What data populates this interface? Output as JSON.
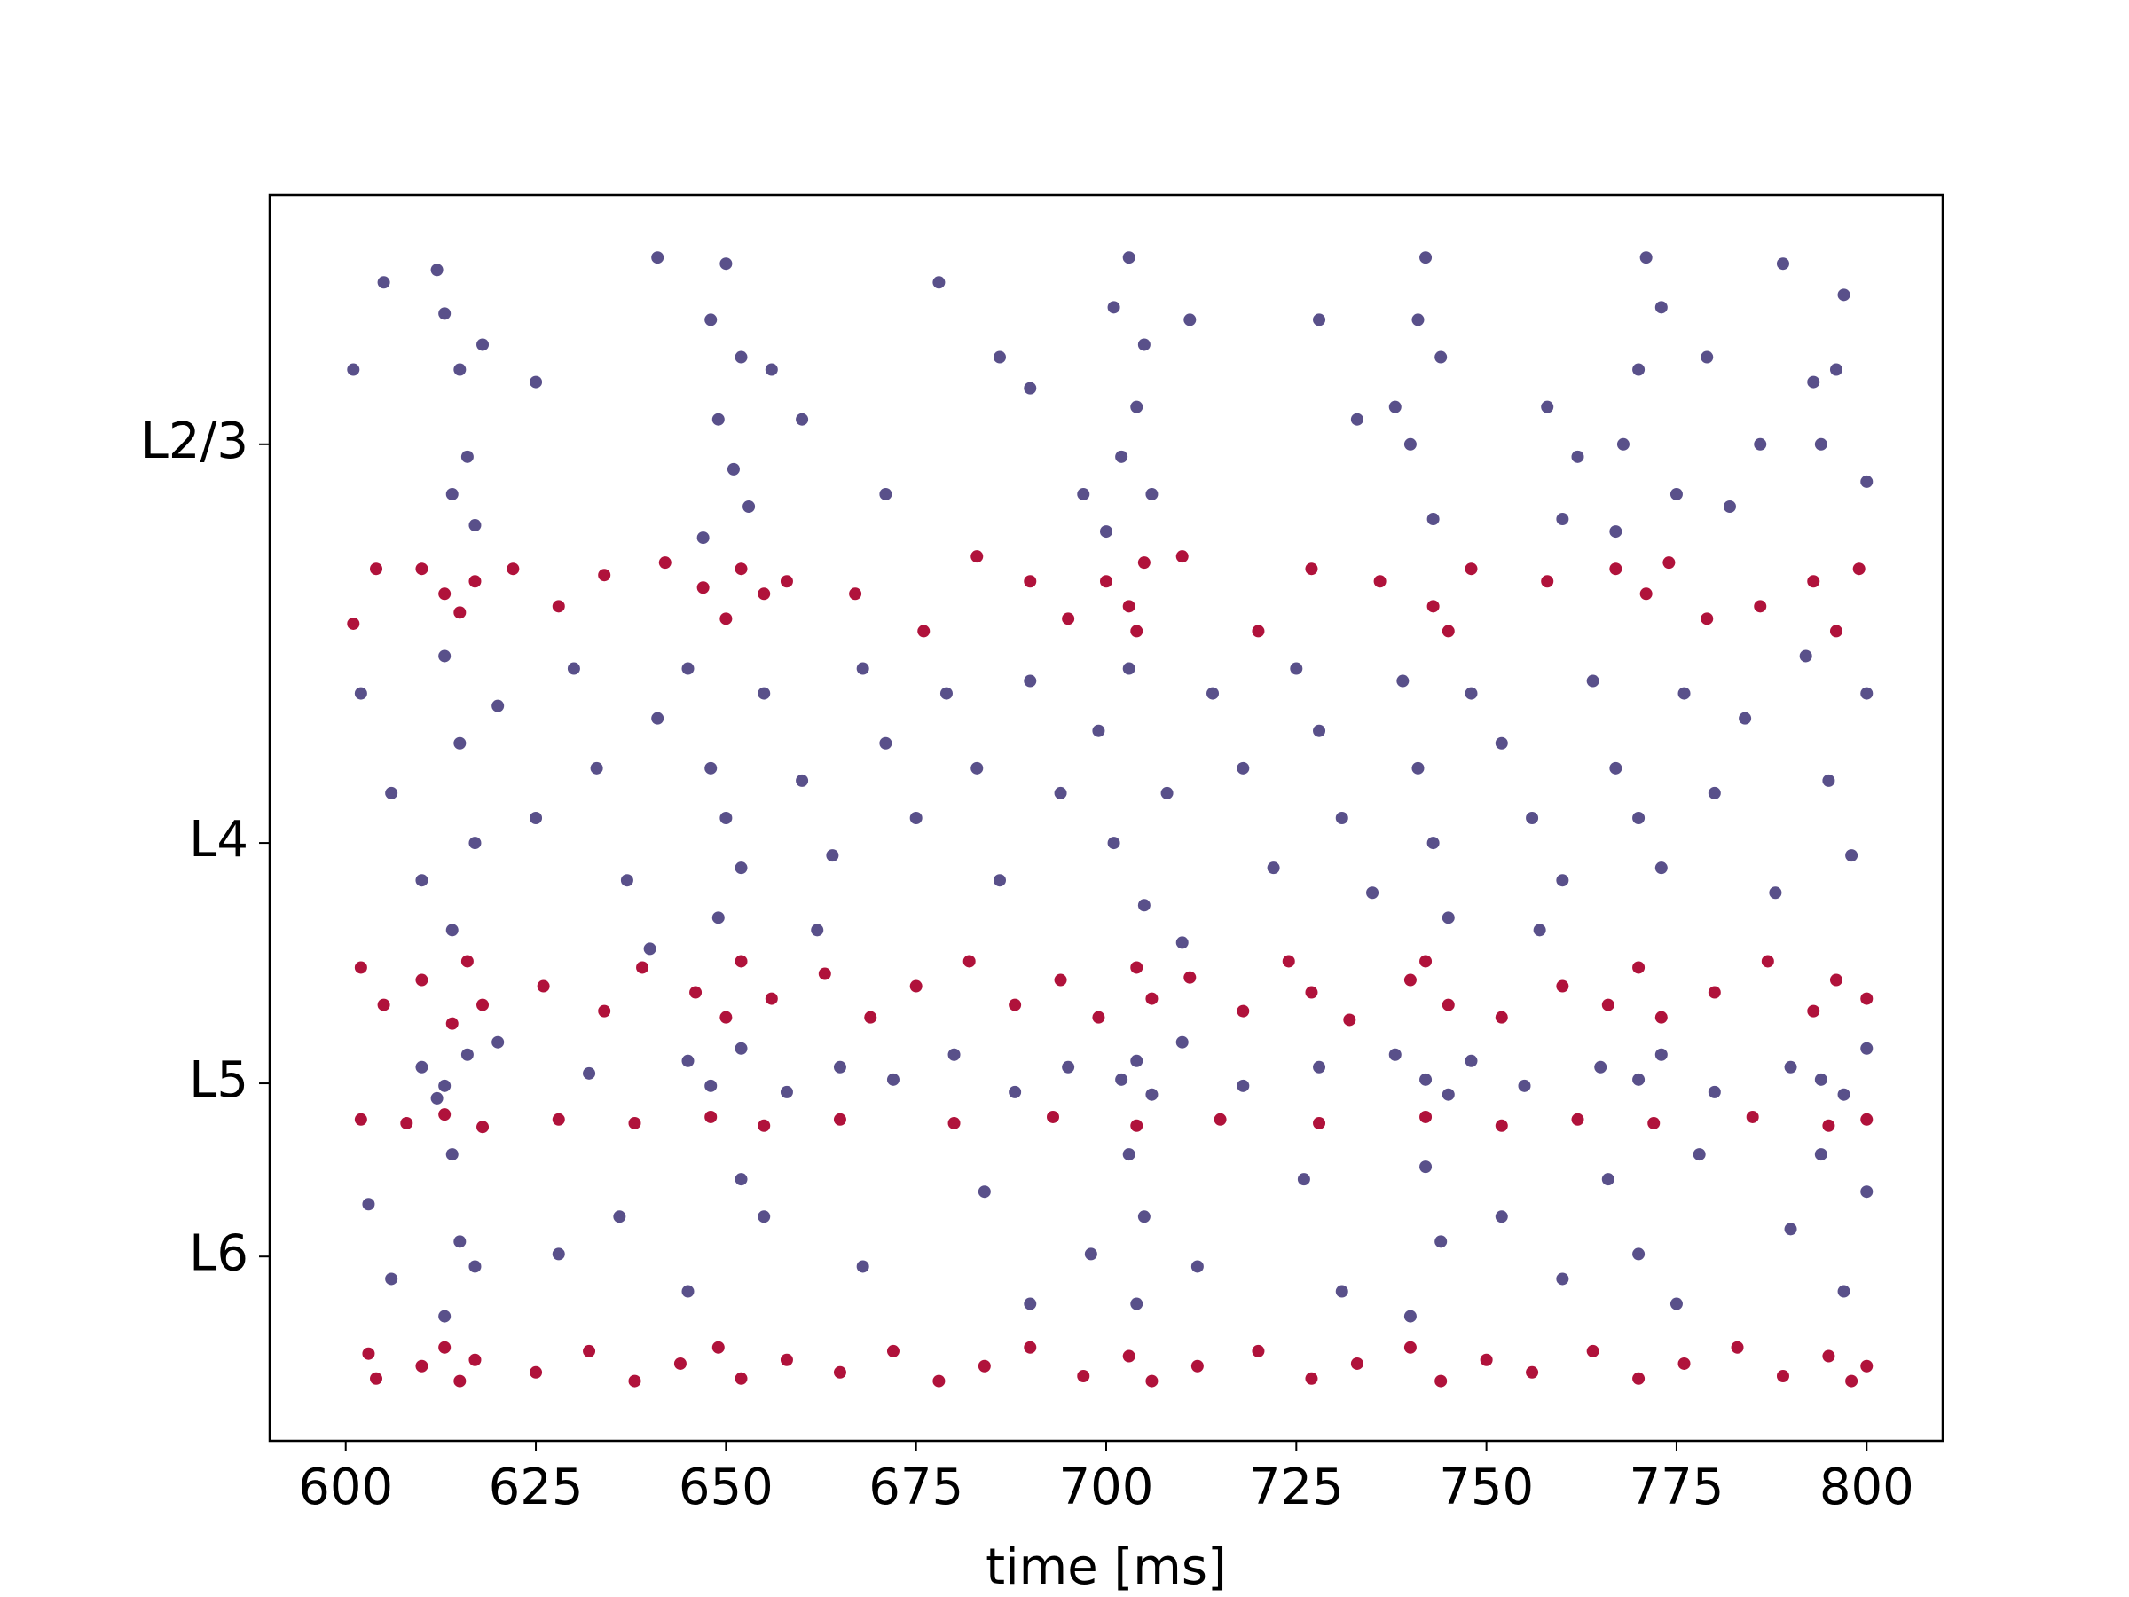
{
  "chart_data": {
    "type": "scatter",
    "xlabel": "time [ms]",
    "xlim": [
      590,
      810
    ],
    "xticks": [
      600,
      625,
      650,
      675,
      700,
      725,
      750,
      775,
      800
    ],
    "ylim": [
      0,
      1000
    ],
    "yticks": [
      {
        "value": 800,
        "label": "L2/3"
      },
      {
        "value": 480,
        "label": "L4"
      },
      {
        "value": 287,
        "label": "L5"
      },
      {
        "value": 148,
        "label": "L6"
      }
    ],
    "series": [
      {
        "color": "#59508a",
        "x": [
          605,
          613,
          615,
          616,
          614,
          617,
          612,
          618,
          601,
          625,
          650,
          648,
          652,
          649,
          651,
          653,
          647,
          641,
          656,
          660,
          671,
          678,
          686,
          690,
          697,
          703,
          701,
          705,
          704,
          702,
          706,
          700,
          711,
          728,
          733,
          742,
          741,
          744,
          740,
          743,
          738,
          758,
          762,
          760,
          771,
          773,
          770,
          768,
          775,
          767,
          779,
          793,
          789,
          797,
          796,
          794,
          800,
          786,
          782,
          602,
          606,
          610,
          613,
          615,
          617,
          614,
          620,
          625,
          630,
          633,
          637,
          641,
          645,
          648,
          650,
          652,
          649,
          655,
          660,
          664,
          668,
          671,
          675,
          679,
          683,
          686,
          690,
          694,
          699,
          701,
          703,
          705,
          708,
          714,
          718,
          722,
          725,
          728,
          731,
          735,
          739,
          741,
          743,
          745,
          748,
          752,
          756,
          760,
          764,
          767,
          770,
          773,
          776,
          780,
          784,
          788,
          792,
          795,
          798,
          800,
          662,
          710,
          757,
          640,
          610,
          613,
          616,
          612,
          620,
          632,
          645,
          648,
          652,
          658,
          665,
          672,
          680,
          688,
          695,
          702,
          704,
          706,
          710,
          718,
          728,
          738,
          742,
          745,
          748,
          755,
          765,
          770,
          773,
          780,
          790,
          794,
          797,
          800,
          603,
          606,
          614,
          615,
          613,
          617,
          628,
          636,
          645,
          652,
          655,
          668,
          684,
          690,
          698,
          703,
          705,
          704,
          712,
          726,
          731,
          742,
          744,
          740,
          752,
          760,
          766,
          770,
          775,
          778,
          790,
          794,
          797,
          800
        ],
        "values": [
          930,
          905,
          860,
          790,
          760,
          735,
          940,
          880,
          860,
          850,
          945,
          900,
          870,
          820,
          780,
          750,
          725,
          950,
          860,
          820,
          760,
          930,
          870,
          845,
          760,
          950,
          910,
          880,
          830,
          790,
          760,
          730,
          900,
          900,
          820,
          950,
          900,
          870,
          800,
          740,
          830,
          830,
          790,
          740,
          950,
          910,
          860,
          800,
          760,
          730,
          870,
          850,
          945,
          920,
          860,
          800,
          770,
          800,
          750,
          600,
          520,
          450,
          630,
          560,
          480,
          410,
          590,
          500,
          620,
          540,
          450,
          580,
          620,
          540,
          500,
          460,
          420,
          600,
          530,
          470,
          620,
          560,
          500,
          600,
          540,
          450,
          610,
          520,
          570,
          480,
          620,
          430,
          520,
          600,
          540,
          460,
          620,
          570,
          500,
          440,
          610,
          540,
          480,
          420,
          600,
          560,
          500,
          450,
          610,
          540,
          500,
          460,
          600,
          520,
          580,
          440,
          630,
          530,
          470,
          600,
          410,
          400,
          410,
          395,
          300,
          285,
          310,
          275,
          320,
          295,
          305,
          285,
          315,
          280,
          300,
          290,
          310,
          280,
          300,
          290,
          305,
          278,
          320,
          285,
          300,
          310,
          290,
          278,
          305,
          285,
          300,
          290,
          310,
          280,
          300,
          290,
          278,
          315,
          190,
          130,
          230,
          160,
          100,
          140,
          150,
          180,
          120,
          210,
          180,
          140,
          200,
          110,
          150,
          230,
          180,
          110,
          140,
          210,
          120,
          220,
          160,
          100,
          180,
          130,
          210,
          150,
          110,
          230,
          170,
          230,
          120,
          200
        ]
      },
      {
        "color": "#b0123b",
        "x": [
          601,
          604,
          610,
          613,
          615,
          617,
          622,
          628,
          634,
          642,
          647,
          650,
          652,
          655,
          658,
          667,
          676,
          683,
          690,
          695,
          700,
          703,
          705,
          704,
          710,
          720,
          727,
          736,
          743,
          745,
          748,
          758,
          767,
          771,
          774,
          779,
          786,
          793,
          796,
          799,
          602,
          605,
          610,
          614,
          616,
          618,
          626,
          634,
          639,
          646,
          650,
          652,
          656,
          663,
          669,
          675,
          682,
          688,
          694,
          699,
          704,
          706,
          711,
          718,
          724,
          727,
          732,
          740,
          742,
          745,
          752,
          760,
          766,
          770,
          773,
          780,
          787,
          793,
          796,
          800,
          602,
          608,
          613,
          618,
          628,
          638,
          648,
          655,
          665,
          680,
          693,
          704,
          715,
          728,
          742,
          752,
          762,
          772,
          785,
          795,
          800,
          603,
          604,
          610,
          613,
          615,
          617,
          625,
          632,
          638,
          644,
          649,
          652,
          658,
          665,
          672,
          678,
          684,
          690,
          697,
          703,
          706,
          712,
          720,
          727,
          733,
          740,
          744,
          750,
          756,
          764,
          770,
          776,
          783,
          789,
          795,
          798,
          800
        ],
        "values": [
          656,
          700,
          700,
          680,
          665,
          690,
          700,
          670,
          695,
          705,
          685,
          660,
          700,
          680,
          690,
          680,
          650,
          710,
          690,
          660,
          690,
          670,
          705,
          650,
          710,
          650,
          700,
          690,
          670,
          650,
          700,
          690,
          700,
          680,
          705,
          660,
          670,
          690,
          650,
          700,
          380,
          350,
          370,
          335,
          385,
          350,
          365,
          345,
          380,
          360,
          340,
          385,
          355,
          375,
          340,
          365,
          385,
          350,
          370,
          340,
          380,
          355,
          372,
          345,
          385,
          360,
          338,
          370,
          385,
          350,
          340,
          365,
          350,
          380,
          340,
          360,
          385,
          345,
          370,
          355,
          258,
          255,
          262,
          252,
          258,
          255,
          260,
          253,
          258,
          255,
          260,
          253,
          258,
          255,
          260,
          253,
          258,
          255,
          260,
          253,
          258,
          70,
          50,
          60,
          75,
          48,
          65,
          55,
          72,
          48,
          62,
          75,
          50,
          65,
          55,
          72,
          48,
          60,
          75,
          52,
          68,
          48,
          60,
          72,
          50,
          62,
          75,
          48,
          65,
          55,
          72,
          50,
          62,
          75,
          52,
          68,
          48,
          60
        ]
      }
    ]
  }
}
